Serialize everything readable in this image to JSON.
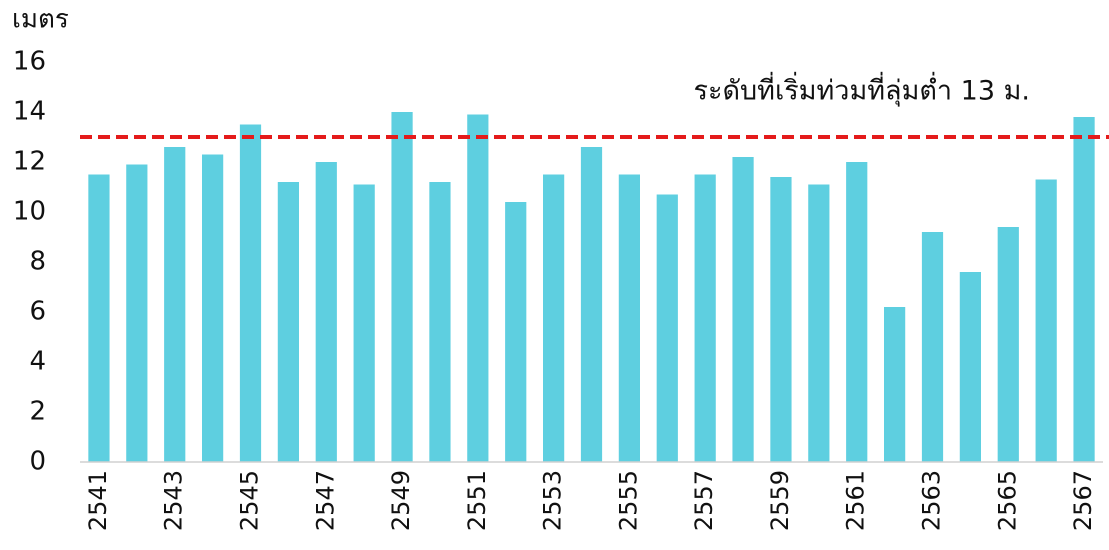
{
  "chart_data": {
    "type": "bar",
    "y_axis_label": "เมตร",
    "categories": [
      "2541",
      null,
      "2543",
      null,
      "2545",
      null,
      "2547",
      null,
      "2549",
      null,
      "2551",
      null,
      "2553",
      null,
      "2555",
      null,
      "2557",
      null,
      "2559",
      null,
      "2561",
      null,
      "2563",
      null,
      "2565",
      null,
      "2567"
    ],
    "values": [
      11.5,
      11.9,
      12.6,
      12.3,
      13.5,
      11.2,
      12.0,
      11.1,
      14.0,
      11.2,
      13.9,
      10.4,
      11.5,
      12.6,
      11.5,
      10.7,
      11.5,
      12.2,
      11.4,
      11.1,
      12.0,
      6.2,
      9.2,
      7.6,
      9.4,
      11.3,
      13.8
    ],
    "color": "#5ecfe0",
    "ylim": [
      0,
      16
    ],
    "yticks": [
      0,
      2,
      4,
      6,
      8,
      10,
      12,
      14,
      16
    ],
    "grid": false,
    "reference_line": {
      "value": 13,
      "color": "#e41b1b",
      "label": "ระดับที่เริ่มท่วมที่ลุ่มต่ำ 13 ม."
    }
  }
}
